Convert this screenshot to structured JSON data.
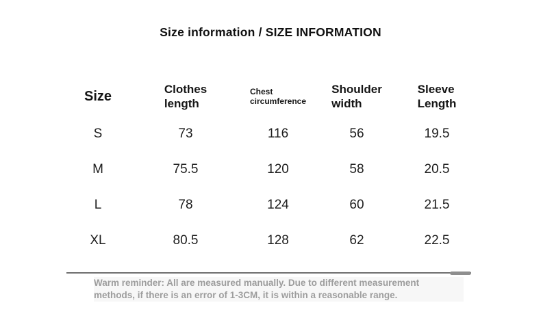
{
  "title": "Size information / SIZE INFORMATION",
  "table": {
    "headers": [
      {
        "id": "size",
        "lines": [
          "Size"
        ]
      },
      {
        "id": "clothes-length",
        "lines": [
          "Clothes",
          "length"
        ]
      },
      {
        "id": "chest-circumference",
        "lines": [
          "Chest",
          "circumference"
        ]
      },
      {
        "id": "shoulder-width",
        "lines": [
          "Shoulder",
          "width"
        ]
      },
      {
        "id": "sleeve-length",
        "lines": [
          "Sleeve",
          "Length"
        ]
      }
    ],
    "rows": [
      {
        "cells": [
          "S",
          "73",
          "116",
          "56",
          "19.5"
        ]
      },
      {
        "cells": [
          "M",
          "75.5",
          "120",
          "58",
          "20.5"
        ]
      },
      {
        "cells": [
          "L",
          "78",
          "124",
          "60",
          "21.5"
        ]
      },
      {
        "cells": [
          "XL",
          "80.5",
          "128",
          "62",
          "22.5"
        ]
      }
    ]
  },
  "chart_data": {
    "type": "table",
    "title": "Size information / SIZE INFORMATION",
    "columns": [
      "Size",
      "Clothes length",
      "Chest circumference",
      "Shoulder width",
      "Sleeve Length"
    ],
    "rows": [
      [
        "S",
        73,
        116,
        56,
        19.5
      ],
      [
        "M",
        75.5,
        120,
        58,
        20.5
      ],
      [
        "L",
        78,
        124,
        60,
        21.5
      ],
      [
        "XL",
        80.5,
        128,
        62,
        22.5
      ]
    ]
  },
  "reminder": {
    "line1": "Warm reminder: All are measured manually. Due to different measurement",
    "line2": "methods, if there is an error of 1-3CM, it is within a reasonable range."
  },
  "colors": {
    "heading_text": "#111111",
    "body_text": "#1d1d1d",
    "reminder_text": "#9d9d9d",
    "divider_line": "#6f6f6f",
    "divider_thumb": "#8e8e8e",
    "background": "#ffffff"
  }
}
